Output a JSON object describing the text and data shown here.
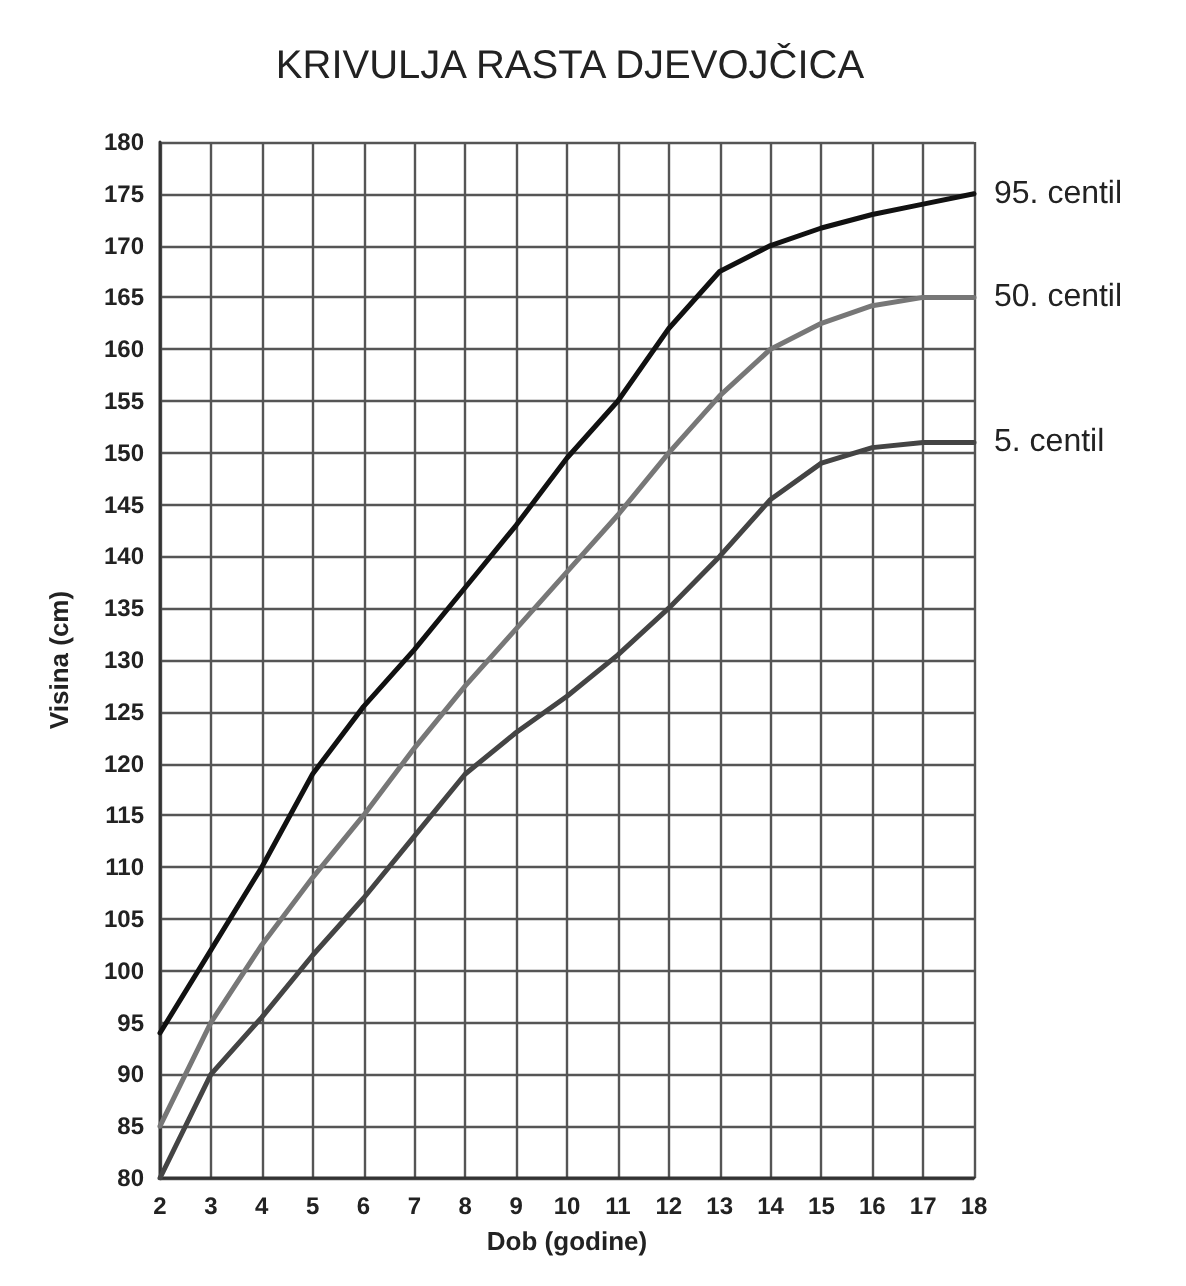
{
  "chart_data": {
    "type": "line",
    "title": "KRIVULJA RASTA DJEVOJČICA",
    "xlabel": "Dob (godine)",
    "ylabel": "Visina (cm)",
    "x": [
      2,
      3,
      4,
      5,
      6,
      7,
      8,
      9,
      10,
      11,
      12,
      13,
      14,
      15,
      16,
      17,
      18
    ],
    "series": [
      {
        "name": "95. centil",
        "color": "#111111",
        "values": [
          94,
          102,
          110,
          119,
          125.5,
          131,
          137,
          143,
          149.5,
          155,
          162,
          167.5,
          170,
          171.7,
          173,
          174,
          175
        ]
      },
      {
        "name": "50. centil",
        "color": "#777777",
        "values": [
          85,
          95,
          102.5,
          109,
          115,
          121.5,
          127.5,
          133,
          138.5,
          144,
          150,
          155.5,
          160,
          162.5,
          164.2,
          165,
          165
        ]
      },
      {
        "name": "5. centil",
        "color": "#444444",
        "values": [
          80,
          90,
          95.5,
          101.5,
          107,
          113,
          119,
          123,
          126.5,
          130.5,
          135,
          140,
          145.5,
          149,
          150.5,
          151,
          151
        ]
      }
    ],
    "xlim": [
      2,
      18
    ],
    "xticks": [
      2,
      3,
      4,
      5,
      6,
      7,
      8,
      9,
      10,
      11,
      12,
      13,
      14,
      15,
      16,
      17,
      18
    ],
    "ylim": [
      80,
      180
    ],
    "yticks": [
      80,
      85,
      90,
      95,
      100,
      105,
      110,
      115,
      120,
      125,
      130,
      135,
      140,
      145,
      150,
      155,
      160,
      165,
      170,
      175,
      180
    ],
    "grid": true,
    "legend": false,
    "marker": "none",
    "line_style": "solid"
  }
}
